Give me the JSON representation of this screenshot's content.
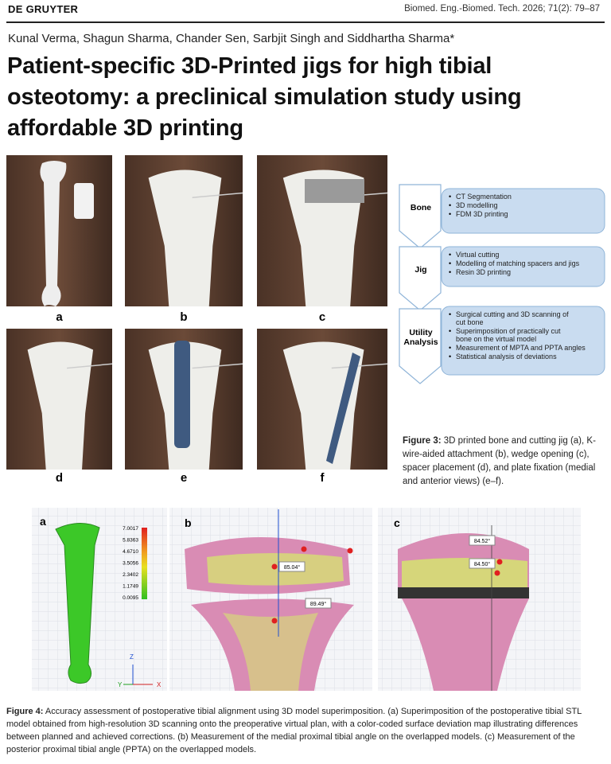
{
  "header": {
    "publisher": "DE GRUYTER",
    "journal": "Biomed. Eng.-Biomed. Tech. 2026; 71(2): 79–87"
  },
  "authors": "Kunal Verma, Shagun Sharma, Chander Sen, Sarbjit Singh and Siddhartha Sharma*",
  "title": "Patient-specific 3D-Printed jigs for high tibial osteotomy: a preclinical simulation study using affordable 3D printing",
  "figure3": {
    "panels": [
      "a",
      "b",
      "c",
      "d",
      "e",
      "f"
    ],
    "flowchart": [
      {
        "label": "Bone",
        "items": [
          "CT Segmentation",
          "3D modelling",
          "FDM 3D printing"
        ]
      },
      {
        "label": "Jig",
        "items": [
          "Virtual cutting",
          "Modelling of matching spacers and jigs",
          "Resin 3D printing"
        ]
      },
      {
        "label": "Utility Analysis",
        "items": [
          "Surgical cutting and 3D scanning of cut bone",
          "Superimposition of practically cut bone on the virtual model",
          "Measurement of MPTA and PPTA angles",
          "Statistical analysis of deviations"
        ]
      }
    ],
    "caption": {
      "label": "Figure 3:",
      "text": "3D printed bone and cutting jig (a), K-wire-aided attachment (b), wedge opening (c), spacer placement (d), and plate fixation (medial and anterior views) (e–f)."
    }
  },
  "figure4": {
    "panel_a": {
      "label": "a",
      "scale": [
        "7.0017",
        "5.8363",
        "4.6710",
        "3.5056",
        "2.3402",
        "1.1749",
        "0.0095"
      ],
      "axes": [
        "Z",
        "Y",
        "X"
      ]
    },
    "panel_b": {
      "label": "b",
      "angles": [
        "85.04°",
        "89.49°"
      ]
    },
    "panel_c": {
      "label": "c",
      "angles": [
        "84.52°",
        "84.50°"
      ]
    },
    "caption": {
      "label": "Figure 4:",
      "text": "Accuracy assessment of postoperative tibial alignment using 3D model superimposition. (a) Superimposition of the postoperative tibial STL model obtained from high-resolution 3D scanning onto the preoperative virtual plan, with a color-coded surface deviation map illustrating differences between planned and achieved corrections. (b) Measurement of the medial proximal tibial angle on the overlapped models. (c) Measurement of the posterior proximal tibial angle (PPTA) on the overlapped models."
    }
  }
}
